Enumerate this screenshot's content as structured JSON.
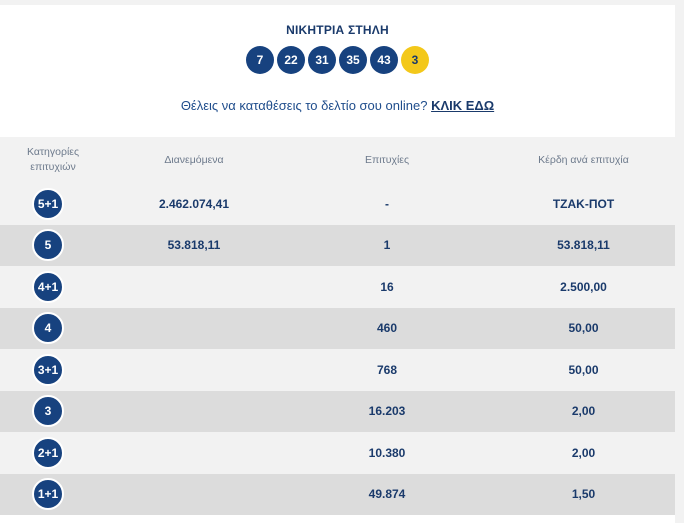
{
  "header": {
    "title": "ΝΙΚΗΤΡΙΑ ΣΤΗΛΗ",
    "numbers": [
      "7",
      "22",
      "31",
      "35",
      "43"
    ],
    "joker": "3"
  },
  "cta": {
    "text": "Θέλεις να καταθέσεις το δελτίο σου online?",
    "link": "ΚΛΙΚ ΕΔΩ"
  },
  "table": {
    "headers": {
      "category_line1": "Κατηγορίες",
      "category_line2": "επιτυχιών",
      "distributed": "Διανεμόμενα",
      "winners": "Επιτυχίες",
      "prize": "Κέρδη ανά επιτυχία"
    },
    "rows": [
      {
        "category": "5+1",
        "distributed": "2.462.074,41",
        "winners": "-",
        "prize": "ΤΖΑΚ-ΠΟΤ"
      },
      {
        "category": "5",
        "distributed": "53.818,11",
        "winners": "1",
        "prize": "53.818,11"
      },
      {
        "category": "4+1",
        "distributed": "",
        "winners": "16",
        "prize": "2.500,00"
      },
      {
        "category": "4",
        "distributed": "",
        "winners": "460",
        "prize": "50,00"
      },
      {
        "category": "3+1",
        "distributed": "",
        "winners": "768",
        "prize": "50,00"
      },
      {
        "category": "3",
        "distributed": "",
        "winners": "16.203",
        "prize": "2,00"
      },
      {
        "category": "2+1",
        "distributed": "",
        "winners": "10.380",
        "prize": "2,00"
      },
      {
        "category": "1+1",
        "distributed": "",
        "winners": "49.874",
        "prize": "1,50"
      }
    ]
  },
  "colors": {
    "ball": "#17427f",
    "joker": "#f3c81a",
    "text": "#1a3a6b",
    "row_light": "#f2f2f2",
    "row_dark": "#dcdcdc"
  }
}
